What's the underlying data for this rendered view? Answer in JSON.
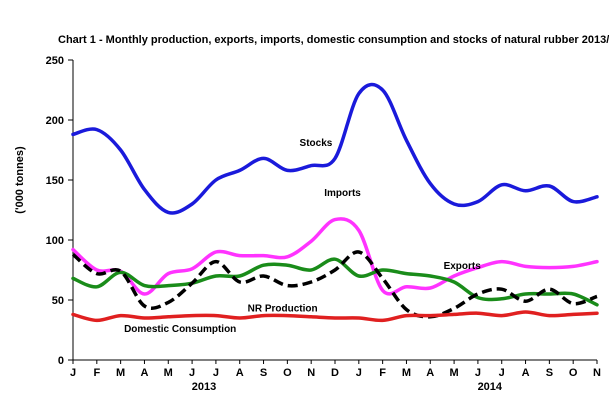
{
  "chart_data": {
    "type": "line",
    "title": "Chart 1 - Monthly production, exports, imports, domestic consumption and stocks of natural rubber 2013/",
    "ylabel": "('000 tonnes)",
    "xlabel": "",
    "ylim": [
      0,
      250
    ],
    "yticks": [
      "0",
      "50",
      "100",
      "150",
      "200",
      "250"
    ],
    "categories": [
      "J",
      "F",
      "M",
      "A",
      "M",
      "J",
      "J",
      "A",
      "S",
      "O",
      "N",
      "D",
      "J",
      "F",
      "M",
      "A",
      "M",
      "J",
      "J",
      "A",
      "S",
      "O",
      "N"
    ],
    "years": [
      {
        "label": "2013",
        "center_index": 5.5
      },
      {
        "label": "2014",
        "center_index": 17.5
      }
    ],
    "grid": false,
    "legend": "inline labels",
    "series": [
      {
        "name": "Stocks",
        "color": "#1a1adb",
        "dash": false,
        "values": [
          188,
          192,
          175,
          142,
          123,
          130,
          150,
          158,
          168,
          158,
          162,
          168,
          222,
          225,
          183,
          147,
          130,
          132,
          146,
          141,
          145,
          132,
          136
        ],
        "label_index": 10.2,
        "label_dy": -4
      },
      {
        "name": "Imports",
        "color": "#ff33ff",
        "dash": false,
        "values": [
          92,
          75,
          74,
          55,
          72,
          76,
          90,
          87,
          87,
          86,
          99,
          117,
          108,
          58,
          61,
          60,
          70,
          77,
          82,
          78,
          77,
          78,
          82
        ],
        "label_index": 11.4,
        "label_dy": 0
      },
      {
        "name": "Exports",
        "color": "#1a8c1a",
        "dash": false,
        "values": [
          68,
          61,
          73,
          62,
          62,
          64,
          70,
          70,
          79,
          79,
          75,
          84,
          70,
          75,
          72,
          70,
          65,
          52,
          51,
          55,
          55,
          55,
          46
        ],
        "label_index": 15.5,
        "label_dy": 0
      },
      {
        "name": "NR Production",
        "color": "#000000",
        "dash": true,
        "values": [
          88,
          72,
          74,
          45,
          48,
          64,
          82,
          65,
          70,
          62,
          65,
          75,
          90,
          68,
          42,
          36,
          43,
          55,
          59,
          49,
          59,
          47,
          53
        ],
        "label_index": 8.8,
        "label_dy": 0
      },
      {
        "name": "Domestic Consumption",
        "color": "#e02020",
        "dash": false,
        "values": [
          38,
          33,
          37,
          35,
          36,
          37,
          37,
          35,
          37,
          37,
          36,
          35,
          35,
          33,
          37,
          37,
          38,
          39,
          37,
          40,
          37,
          38,
          39
        ],
        "label_index": 4.5,
        "label_dy": 0
      }
    ]
  }
}
